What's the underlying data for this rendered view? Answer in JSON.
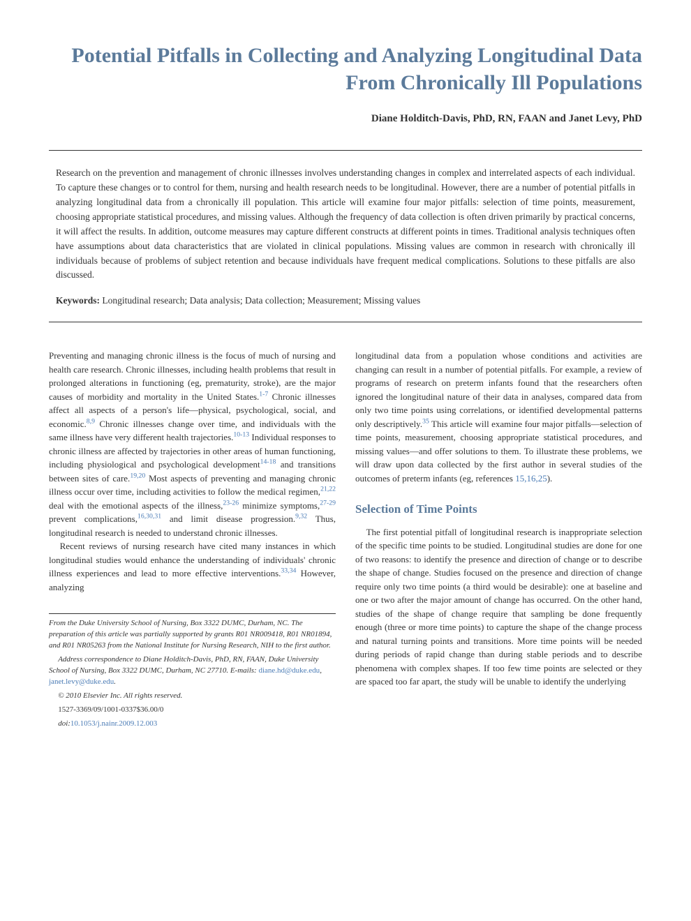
{
  "colors": {
    "heading_blue": "#5b7a9a",
    "link_blue": "#4a7bb5",
    "body_text": "#333333",
    "background": "#ffffff",
    "rule": "#333333"
  },
  "typography": {
    "title_fontsize_pt": 22,
    "authors_fontsize_pt": 11,
    "abstract_fontsize_pt": 10,
    "body_fontsize_pt": 9.5,
    "section_heading_fontsize_pt": 13,
    "footnote_fontsize_pt": 8
  },
  "title": "Potential Pitfalls in Collecting and Analyzing Longitudinal Data From Chronically Ill Populations",
  "authors": "Diane Holditch-Davis, PhD, RN, FAAN and Janet Levy, PhD",
  "abstract": "Research on the prevention and management of chronic illnesses involves understanding changes in complex and interrelated aspects of each individual. To capture these changes or to control for them, nursing and health research needs to be longitudinal. However, there are a number of potential pitfalls in analyzing longitudinal data from a chronically ill population. This article will examine four major pitfalls: selection of time points, measurement, choosing appropriate statistical procedures, and missing values. Although the frequency of data collection is often driven primarily by practical concerns, it will affect the results. In addition, outcome measures may capture different constructs at different points in times. Traditional analysis techniques often have assumptions about data characteristics that are violated in clinical populations. Missing values are common in research with chronically ill individuals because of problems of subject retention and because individuals have frequent medical complications. Solutions to these pitfalls are also discussed.",
  "keywords_label": "Keywords:",
  "keywords_text": " Longitudinal research; Data analysis; Data collection; Measurement; Missing values",
  "body": {
    "col1": {
      "p1_a": "Preventing and managing chronic illness is the focus of much of nursing and health care research. Chronic illnesses, including health problems that result in prolonged alterations in functioning (eg, prematurity, stroke), are the major causes of morbidity and mortality in the United States.",
      "c1": "1-7",
      "p1_b": " Chronic illnesses affect all aspects of a person's life—physical, psychological, social, and economic.",
      "c2": "8,9",
      "p1_c": " Chronic illnesses change over time, and individuals with the same illness have very different health trajectories.",
      "c3": "10-13",
      "p1_d": " Individual responses to chronic illness are affected by trajectories in other areas of human functioning, including physiological and psychological development",
      "c4": "14-18",
      "p1_e": " and transitions between sites of care.",
      "c5": "19,20",
      "p1_f": " Most aspects of preventing and managing chronic illness occur over time, including activities to follow the medical regimen,",
      "c6": "21,22",
      "p1_g": " deal with the emotional aspects of the illness,",
      "c7": "23-26",
      "p1_h": " minimize symptoms,",
      "c8": "27-29",
      "p1_i": " prevent complications,",
      "c9": "16,30,31",
      "p1_j": " and limit disease progression.",
      "c10": "9,32",
      "p1_k": " Thus, longitudinal research is needed to understand chronic illnesses.",
      "p2_a": "Recent reviews of nursing research have cited many instances in which longitudinal studies would enhance the understanding of individuals' chronic illness experiences and lead to more effective interventions.",
      "c11": "33,34",
      "p2_b": " However, analyzing"
    },
    "footnotes": {
      "f1": "From the Duke University School of Nursing, Box 3322 DUMC, Durham, NC. The preparation of this article was partially supported by grants R01 NR009418, R01 NR01894, and R01 NR05263 from the National Institute for Nursing Research, NIH to the first author.",
      "f2_a": "Address correspondence to Diane Holditch-Davis, PhD, RN, FAAN, Duke University School of Nursing, Box 3322 DUMC, Durham, NC 27710. E-mails: ",
      "email1": "diane.hd@duke.edu",
      "f2_sep": ", ",
      "email2": "janet.levy@duke.edu",
      "f2_end": ".",
      "f3": "© 2010 Elsevier Inc. All rights reserved.",
      "f4": "1527-3369/09/1001-0337$36.00/0",
      "f5_a": "doi:",
      "f5_doi": "10.1053/j.nainr.2009.12.003"
    },
    "col2": {
      "p1_a": "longitudinal data from a population whose conditions and activities are changing can result in a number of potential pitfalls. For example, a review of programs of research on preterm infants found that the researchers often ignored the longitudinal nature of their data in analyses, compared data from only two time points using correlations, or identified developmental patterns only descriptively.",
      "c1": "35",
      "p1_b": " This article will examine four major pitfalls—selection of time points, measurement, choosing appropriate statistical procedures, and missing values—and offer solutions to them. To illustrate these problems, we will draw upon data collected by the first author in several studies of the outcomes of preterm infants (eg, references ",
      "c2": "15,16,25",
      "p1_c": ").",
      "heading": "Selection of Time Points",
      "p2": "The first potential pitfall of longitudinal research is inappropriate selection of the specific time points to be studied. Longitudinal studies are done for one of two reasons: to identify the presence and direction of change or to describe the shape of change. Studies focused on the presence and direction of change require only two time points (a third would be desirable): one at baseline and one or two after the major amount of change has occurred. On the other hand, studies of the shape of change require that sampling be done frequently enough (three or more time points) to capture the shape of the change process and natural turning points and transitions. More time points will be needed during periods of rapid change than during stable periods and to describe phenomena with complex shapes. If too few time points are selected or they are spaced too far apart, the study will be unable to identify the underlying"
    }
  }
}
